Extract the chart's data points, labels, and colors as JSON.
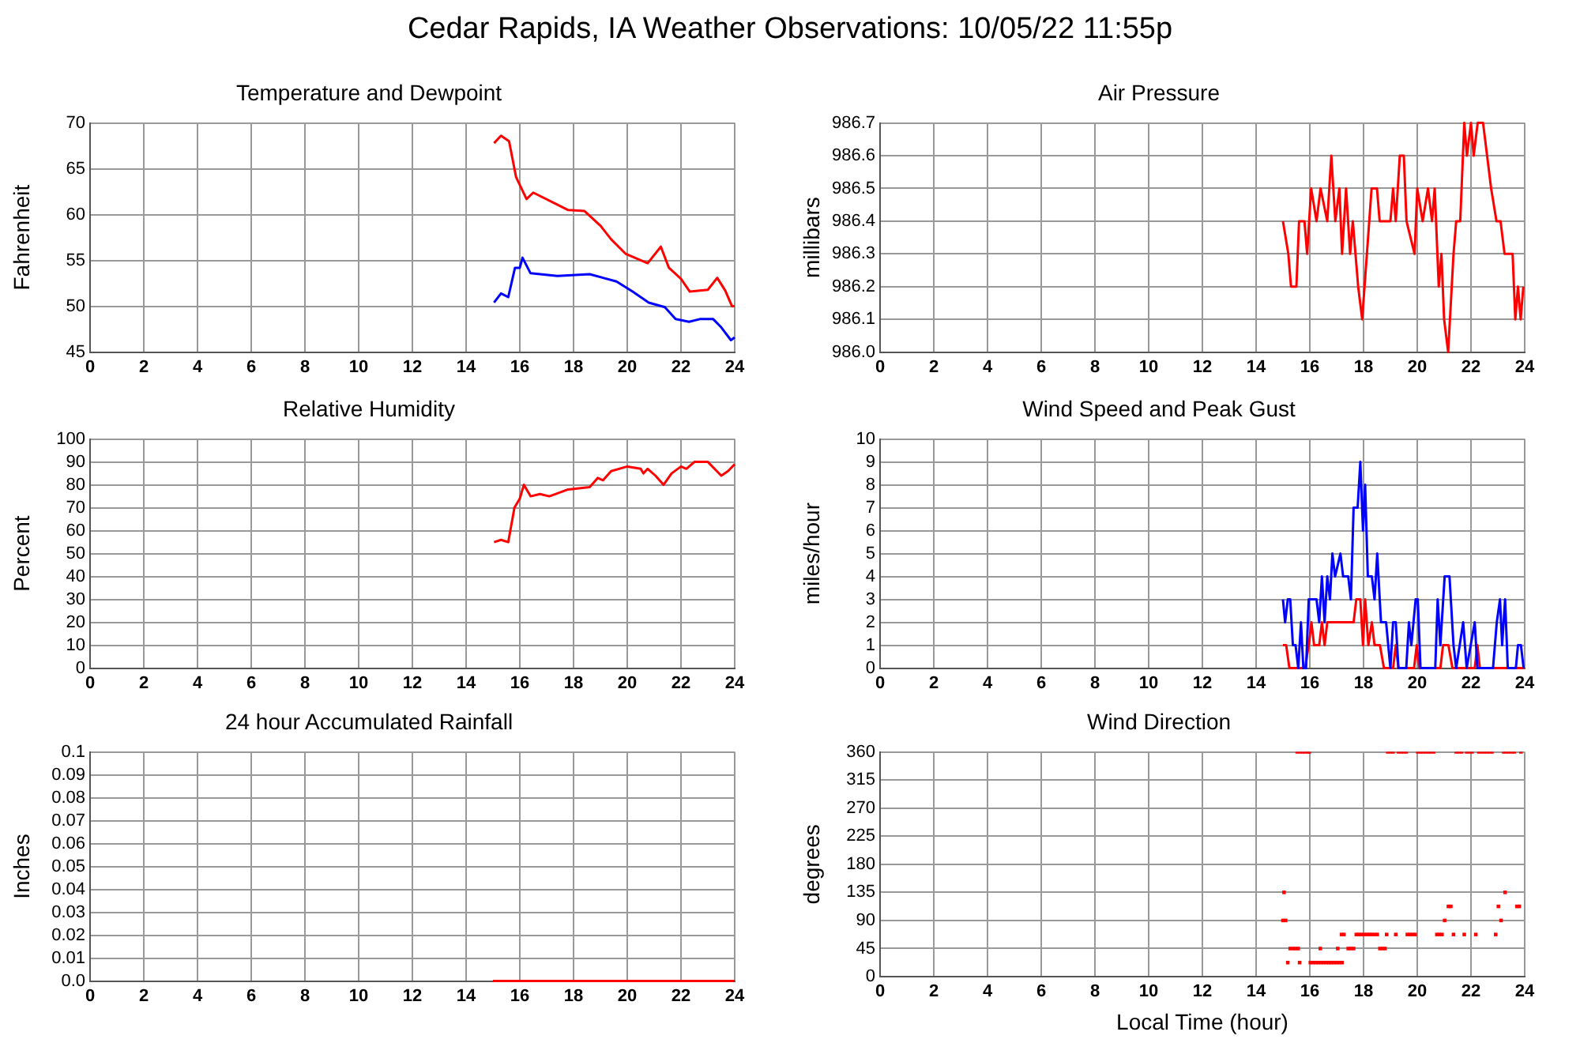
{
  "chart_data": [
    {
      "type": "line",
      "title": "Temperature and Dewpoint",
      "ylabel": "Fahrenheit",
      "annotations": [
        "Cedar Rapids, IA Weather Observations: 10/05/22 11:55p"
      ],
      "xlim": [
        0,
        24
      ],
      "xticks": [
        0,
        2,
        4,
        6,
        8,
        10,
        12,
        14,
        16,
        18,
        20,
        22,
        24
      ],
      "ylim": [
        45,
        70
      ],
      "yticks": [
        45,
        50,
        55,
        60,
        65,
        70
      ],
      "grid": true,
      "legend": false,
      "marker": "none",
      "line_style": "solid",
      "series": [
        {
          "color": "#ff0000",
          "x": [
            15.04,
            15.3,
            15.6,
            15.86,
            16.25,
            16.5,
            17.8,
            18.4,
            19.0,
            19.4,
            19.95,
            20.76,
            21.25,
            21.55,
            22.0,
            22.33,
            23.0,
            23.35,
            23.65,
            23.9,
            24
          ],
          "values": [
            67.8,
            68.6,
            68,
            64.1,
            61.7,
            62.4,
            60.5,
            60.4,
            58.8,
            57.3,
            55.7,
            54.7,
            56.5,
            54.2,
            53,
            51.6,
            51.8,
            53.1,
            51.7,
            50,
            50
          ]
        },
        {
          "color": "#0000ff",
          "x": [
            15.04,
            15.3,
            15.57,
            15.82,
            16.0,
            16.1,
            16.4,
            17.4,
            18.6,
            19.6,
            20.2,
            20.8,
            21.4,
            21.8,
            22.3,
            22.7,
            23.2,
            23.5,
            23.86,
            24
          ],
          "values": [
            50.4,
            51.4,
            51,
            54.2,
            54.2,
            55.3,
            53.6,
            53.3,
            53.5,
            52.7,
            51.6,
            50.4,
            49.9,
            48.6,
            48.3,
            48.6,
            48.6,
            47.7,
            46.3,
            46.6
          ]
        }
      ]
    },
    {
      "type": "line",
      "title": "Air Pressure",
      "ylabel": "millibars",
      "xlim": [
        0,
        24
      ],
      "xticks": [
        0,
        2,
        4,
        6,
        8,
        10,
        12,
        14,
        16,
        18,
        20,
        22,
        24
      ],
      "ylim": [
        986,
        986.7
      ],
      "yticks": [
        {
          "value": 986,
          "label": "986.0"
        },
        986.1,
        986.2,
        986.3,
        986.4,
        986.5,
        986.6,
        986.7
      ],
      "grid": true,
      "legend": false,
      "marker": "none",
      "line_style": "solid",
      "series": [
        {
          "color": "#ff0000",
          "x": [
            15.0,
            15.2,
            15.3,
            15.5,
            15.6,
            15.8,
            15.9,
            16.05,
            16.25,
            16.4,
            16.65,
            16.8,
            16.95,
            17.1,
            17.2,
            17.35,
            17.5,
            17.6,
            17.8,
            17.95,
            18.3,
            18.5,
            18.6,
            19.0,
            19.1,
            19.2,
            19.35,
            19.5,
            19.6,
            19.9,
            20.0,
            20.2,
            20.4,
            20.55,
            20.65,
            20.8,
            20.9,
            21.0,
            21.15,
            21.35,
            21.45,
            21.6,
            21.75,
            21.85,
            22.0,
            22.1,
            22.25,
            22.45,
            22.6,
            22.75,
            22.95,
            23.1,
            23.25,
            23.55,
            23.65,
            23.75,
            23.85,
            23.95
          ],
          "values": [
            986.4,
            986.3,
            986.2,
            986.2,
            986.4,
            986.4,
            986.3,
            986.5,
            986.4,
            986.5,
            986.4,
            986.6,
            986.4,
            986.5,
            986.3,
            986.5,
            986.3,
            986.4,
            986.2,
            986.1,
            986.5,
            986.5,
            986.4,
            986.4,
            986.5,
            986.4,
            986.6,
            986.6,
            986.4,
            986.3,
            986.5,
            986.4,
            986.5,
            986.4,
            986.5,
            986.2,
            986.3,
            986.1,
            986.0,
            986.3,
            986.4,
            986.4,
            986.7,
            986.6,
            986.7,
            986.6,
            986.7,
            986.7,
            986.6,
            986.5,
            986.4,
            986.4,
            986.3,
            986.3,
            986.1,
            986.2,
            986.1,
            986.2
          ]
        }
      ]
    },
    {
      "type": "line",
      "title": "Relative Humidity",
      "ylabel": "Percent",
      "xlim": [
        0,
        24
      ],
      "xticks": [
        0,
        2,
        4,
        6,
        8,
        10,
        12,
        14,
        16,
        18,
        20,
        22,
        24
      ],
      "ylim": [
        0,
        100
      ],
      "yticks": [
        0,
        10,
        20,
        30,
        40,
        50,
        60,
        70,
        80,
        90,
        100
      ],
      "grid": true,
      "legend": false,
      "marker": "none",
      "line_style": "solid",
      "series": [
        {
          "color": "#ff0000",
          "x": [
            15.04,
            15.3,
            15.57,
            15.8,
            16.0,
            16.15,
            16.4,
            16.75,
            17.1,
            17.8,
            18.6,
            18.9,
            19.1,
            19.4,
            20.0,
            20.5,
            20.6,
            20.76,
            21.05,
            21.35,
            21.65,
            22.0,
            22.2,
            22.5,
            23.0,
            23.5,
            23.75,
            24
          ],
          "values": [
            55,
            56,
            55,
            70,
            74,
            80,
            75,
            76,
            75,
            78,
            79,
            83,
            82,
            86,
            88,
            87,
            85,
            87,
            84,
            80,
            85,
            88,
            87,
            90,
            90,
            84,
            86,
            89
          ]
        }
      ]
    },
    {
      "type": "line",
      "title": "Wind Speed and Peak Gust",
      "ylabel": "miles/hour",
      "xlim": [
        0,
        24
      ],
      "xticks": [
        0,
        2,
        4,
        6,
        8,
        10,
        12,
        14,
        16,
        18,
        20,
        22,
        24
      ],
      "ylim": [
        0,
        10
      ],
      "yticks": [
        0,
        1,
        2,
        3,
        4,
        5,
        6,
        7,
        8,
        9,
        10
      ],
      "grid": true,
      "legend": false,
      "marker": "none",
      "line_style": "solid",
      "series": [
        {
          "color": "#0000ff",
          "x": [
            15.0,
            15.08,
            15.18,
            15.27,
            15.37,
            15.47,
            15.57,
            15.67,
            15.76,
            15.86,
            15.96,
            16.25,
            16.35,
            16.45,
            16.55,
            16.65,
            16.75,
            16.84,
            16.94,
            17.14,
            17.24,
            17.43,
            17.53,
            17.63,
            17.78,
            17.88,
            17.98,
            18.06,
            18.16,
            18.31,
            18.41,
            18.51,
            18.65,
            18.84,
            19.0,
            19.1,
            19.2,
            19.3,
            19.59,
            19.69,
            19.78,
            19.94,
            20.02,
            20.12,
            20.67,
            20.76,
            20.86,
            21.02,
            21.2,
            21.35,
            21.45,
            21.71,
            21.84,
            22.14,
            22.24,
            22.82,
            22.96,
            23.08,
            23.16,
            23.27,
            23.37,
            23.67,
            23.75,
            23.86,
            23.96
          ],
          "values": [
            3,
            2,
            3,
            3,
            1,
            1,
            0,
            2,
            0,
            0,
            3,
            3,
            2,
            4,
            2,
            4,
            3,
            5,
            4,
            5,
            4,
            4,
            3,
            7,
            7,
            9,
            6,
            8,
            4,
            4,
            3,
            5,
            2,
            2,
            0,
            2,
            2,
            0,
            0,
            2,
            1,
            3,
            3,
            0,
            0,
            3,
            1,
            4,
            4,
            1,
            0,
            2,
            0,
            2,
            0,
            0,
            2,
            3,
            1,
            3,
            0,
            0,
            1,
            1,
            0
          ]
        },
        {
          "color": "#ff0000",
          "x": [
            15.0,
            15.12,
            15.24,
            15.82,
            15.96,
            16.06,
            16.16,
            16.35,
            16.45,
            16.55,
            16.65,
            17.63,
            17.73,
            17.88,
            17.98,
            18.06,
            18.18,
            18.31,
            18.41,
            18.61,
            18.76,
            19.1,
            19.2,
            19.3,
            19.88,
            19.98,
            20.08,
            20.86,
            20.96,
            21.16,
            21.31,
            22.14,
            22.24,
            22.33,
            23.96
          ],
          "values": [
            1,
            1,
            0,
            0,
            1,
            2,
            1,
            1,
            2,
            1,
            2,
            2,
            3,
            3,
            1,
            3,
            1,
            2,
            1,
            1,
            0,
            0,
            1,
            0,
            0,
            1,
            0,
            0,
            1,
            1,
            0,
            0,
            1,
            0,
            0
          ]
        }
      ]
    },
    {
      "type": "line",
      "title": "24 hour Accumulated Rainfall",
      "ylabel": "Inches",
      "xlim": [
        0,
        24
      ],
      "xticks": [
        0,
        2,
        4,
        6,
        8,
        10,
        12,
        14,
        16,
        18,
        20,
        22,
        24
      ],
      "ylim": [
        0,
        0.1
      ],
      "yticks": [
        {
          "value": 0,
          "label": "0.0"
        },
        0.01,
        0.02,
        0.03,
        0.04,
        0.05,
        0.06,
        0.07,
        0.08,
        0.09,
        0.1
      ],
      "grid": true,
      "legend": false,
      "marker": "none",
      "line_style": "solid",
      "series": [
        {
          "color": "#ff0000",
          "x": [
            15,
            16,
            17,
            18,
            19,
            20,
            21,
            22,
            23,
            24
          ],
          "values": [
            0,
            0,
            0,
            0,
            0,
            0,
            0,
            0,
            0,
            0
          ]
        }
      ]
    },
    {
      "type": "scatter",
      "title": "Wind Direction",
      "ylabel": "degrees",
      "xlabel": "Local Time (hour)",
      "xlim": [
        0,
        24
      ],
      "xticks": [
        0,
        2,
        4,
        6,
        8,
        10,
        12,
        14,
        16,
        18,
        20,
        22,
        24
      ],
      "ylim": [
        0,
        360
      ],
      "yticks": [
        0,
        45,
        90,
        135,
        180,
        225,
        270,
        315,
        360
      ],
      "grid": true,
      "legend": false,
      "marker": "square",
      "series": [
        {
          "color": "#ff0000",
          "x": [
            15.0,
            15.04,
            15.1,
            15.18,
            15.27,
            15.37,
            15.47,
            15.53,
            15.57,
            15.62,
            15.63,
            15.73,
            15.82,
            15.92,
            15.98,
            16.02,
            16.12,
            16.22,
            16.31,
            16.39,
            16.41,
            16.51,
            16.61,
            16.71,
            16.8,
            16.9,
            17.0,
            17.04,
            17.1,
            17.18,
            17.2,
            17.27,
            17.43,
            17.53,
            17.63,
            17.73,
            17.82,
            17.92,
            18.02,
            18.12,
            18.22,
            18.31,
            18.41,
            18.51,
            18.61,
            18.71,
            18.8,
            18.86,
            18.9,
            19.0,
            19.1,
            19.2,
            19.3,
            19.4,
            19.49,
            19.59,
            19.63,
            19.73,
            19.82,
            19.92,
            20.02,
            20.12,
            20.22,
            20.31,
            20.41,
            20.51,
            20.61,
            20.73,
            20.82,
            20.92,
            21.02,
            21.16,
            21.25,
            21.35,
            21.45,
            21.55,
            21.65,
            21.75,
            21.84,
            21.94,
            22.04,
            22.18,
            22.29,
            22.39,
            22.49,
            22.59,
            22.69,
            22.78,
            22.92,
            23.02,
            23.12,
            23.22,
            23.27,
            23.31,
            23.41,
            23.51,
            23.61,
            23.71,
            23.8,
            23.86
          ],
          "values": [
            90,
            135,
            90,
            22.5,
            45,
            45,
            45,
            360,
            45,
            22.5,
            360,
            360,
            360,
            360,
            360,
            22.5,
            22.5,
            22.5,
            22.5,
            45,
            22.5,
            22.5,
            22.5,
            22.5,
            22.5,
            22.5,
            22.5,
            45,
            22.5,
            67.5,
            22.5,
            67.5,
            45,
            45,
            45,
            67.5,
            67.5,
            67.5,
            67.5,
            67.5,
            67.5,
            67.5,
            67.5,
            67.5,
            45,
            45,
            45,
            67.5,
            360,
            360,
            360,
            67.5,
            360,
            360,
            360,
            360,
            67.5,
            67.5,
            67.5,
            67.5,
            360,
            360,
            360,
            360,
            360,
            360,
            360,
            67.5,
            67.5,
            67.5,
            90,
            112.5,
            112.5,
            67.5,
            360,
            360,
            360,
            67.5,
            360,
            360,
            360,
            67.5,
            360,
            360,
            360,
            360,
            360,
            360,
            67.5,
            112.5,
            90,
            360,
            135,
            360,
            360,
            360,
            360,
            112.5,
            112.5,
            360
          ]
        }
      ]
    }
  ]
}
